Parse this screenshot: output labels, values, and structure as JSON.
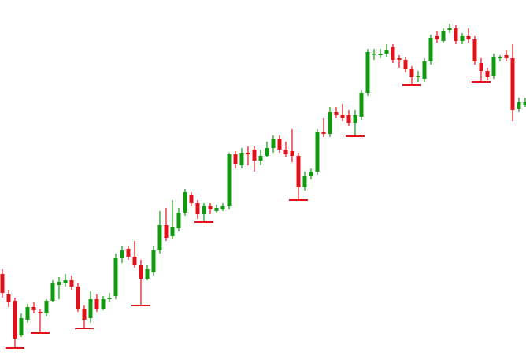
{
  "chart_data": {
    "type": "candlestick",
    "categories": [
      null,
      null,
      null,
      null,
      null,
      null,
      null,
      null,
      null,
      null,
      null,
      null,
      null,
      null,
      null,
      null,
      null,
      null,
      null,
      null,
      null,
      null,
      null,
      null,
      null,
      null,
      null,
      null,
      null,
      null,
      null,
      null,
      null,
      null,
      null,
      null,
      null,
      null,
      null,
      null,
      null,
      null,
      null,
      null,
      null,
      null,
      null,
      null,
      null,
      null,
      null,
      null,
      null,
      null,
      null,
      null,
      null,
      null,
      null,
      null,
      null,
      null,
      null,
      null,
      null,
      null,
      null,
      null,
      null,
      null,
      null,
      null,
      null,
      null,
      null,
      null,
      null,
      null,
      null,
      null,
      null,
      null,
      null,
      null
    ],
    "open": [
      108,
      82,
      74,
      30,
      50,
      66,
      60,
      58,
      74,
      94,
      96,
      100,
      92,
      64,
      52,
      76,
      64,
      76,
      80,
      128,
      140,
      130,
      120,
      102,
      110,
      138,
      170,
      156,
      166,
      186,
      208,
      198,
      184,
      194,
      188,
      190,
      194,
      260,
      246,
      262,
      266,
      252,
      258,
      268,
      280,
      266,
      264,
      258,
      218,
      232,
      238,
      288,
      286,
      314,
      310,
      310,
      300,
      308,
      338,
      388,
      386,
      388,
      396,
      382,
      380,
      368,
      358,
      356,
      378,
      410,
      404,
      418,
      420,
      404,
      410,
      406,
      376,
      366,
      360,
      382,
      386,
      382,
      318,
      322
    ],
    "high": [
      114,
      88,
      78,
      58,
      70,
      72,
      64,
      76,
      100,
      104,
      108,
      106,
      96,
      68,
      86,
      82,
      80,
      84,
      134,
      144,
      144,
      150,
      126,
      120,
      144,
      188,
      192,
      202,
      192,
      216,
      212,
      202,
      198,
      198,
      196,
      198,
      262,
      264,
      268,
      270,
      270,
      266,
      276,
      284,
      284,
      276,
      292,
      262,
      238,
      242,
      292,
      306,
      320,
      320,
      324,
      316,
      316,
      342,
      394,
      394,
      394,
      400,
      400,
      386,
      384,
      372,
      366,
      382,
      412,
      416,
      420,
      426,
      424,
      414,
      420,
      410,
      382,
      370,
      388,
      386,
      392,
      400,
      332,
      332
    ],
    "low": [
      78,
      66,
      14,
      28,
      46,
      58,
      33,
      54,
      72,
      76,
      92,
      88,
      60,
      39,
      46,
      60,
      62,
      72,
      76,
      122,
      126,
      116,
      68,
      100,
      106,
      134,
      150,
      152,
      162,
      182,
      194,
      178,
      174,
      184,
      186,
      188,
      190,
      242,
      242,
      246,
      238,
      246,
      256,
      262,
      262,
      256,
      250,
      202,
      214,
      228,
      234,
      282,
      282,
      306,
      302,
      296,
      283,
      304,
      334,
      380,
      382,
      384,
      376,
      370,
      364,
      348,
      352,
      352,
      374,
      402,
      402,
      414,
      400,
      400,
      402,
      374,
      352,
      354,
      356,
      378,
      378,
      302,
      314,
      320
    ],
    "close": [
      84,
      72,
      26,
      52,
      66,
      62,
      58,
      74,
      96,
      98,
      100,
      92,
      64,
      50,
      76,
      64,
      76,
      78,
      128,
      138,
      130,
      120,
      102,
      114,
      138,
      170,
      154,
      168,
      186,
      212,
      198,
      184,
      194,
      190,
      192,
      194,
      260,
      248,
      262,
      260,
      252,
      258,
      268,
      280,
      266,
      260,
      258,
      218,
      232,
      238,
      288,
      286,
      314,
      310,
      306,
      300,
      310,
      338,
      390,
      388,
      388,
      392,
      380,
      380,
      368,
      358,
      360,
      378,
      408,
      406,
      416,
      420,
      404,
      410,
      406,
      378,
      366,
      358,
      384,
      384,
      382,
      316,
      326,
      326
    ],
    "low_markers": [
      null,
      null,
      14,
      null,
      null,
      null,
      33,
      null,
      null,
      null,
      null,
      null,
      null,
      39,
      null,
      null,
      null,
      null,
      null,
      null,
      null,
      null,
      68,
      null,
      null,
      null,
      null,
      null,
      null,
      null,
      null,
      null,
      174,
      null,
      null,
      null,
      null,
      null,
      null,
      null,
      null,
      null,
      null,
      null,
      null,
      null,
      null,
      202,
      null,
      null,
      null,
      null,
      null,
      null,
      null,
      null,
      283,
      null,
      null,
      null,
      null,
      null,
      null,
      null,
      null,
      348,
      null,
      null,
      null,
      null,
      null,
      null,
      null,
      null,
      null,
      null,
      352,
      null,
      null,
      null,
      null,
      null,
      null,
      null
    ],
    "up_color": "#119a11",
    "down_color": "#e3111a",
    "marker_color": "#e3111a",
    "ylim": [
      0,
      456
    ]
  }
}
